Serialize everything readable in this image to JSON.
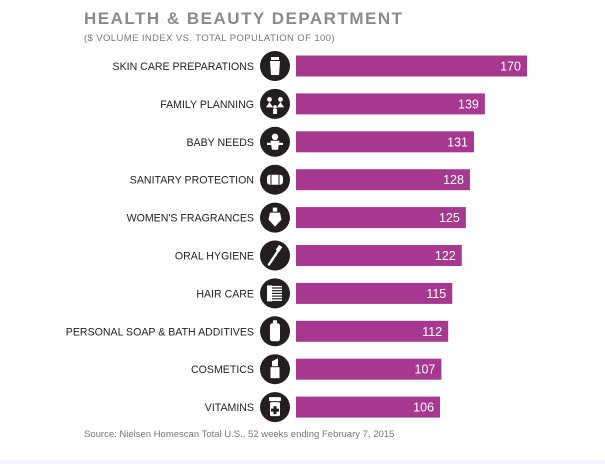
{
  "title": "HEALTH & BEAUTY DEPARTMENT",
  "subtitle": "($ VOLUME INDEX VS. TOTAL POPULATION OF 100)",
  "source": "Source: Nielsen Homescan Total U.S., 52 weeks ending February 7, 2015",
  "colors": {
    "bar": "#a6388f",
    "icon": "#231f20",
    "text": "#231f20",
    "value": "#ffffff"
  },
  "chart_data": {
    "type": "bar",
    "orientation": "horizontal",
    "categories": [
      "SKIN CARE PREPARATIONS",
      "FAMILY PLANNING",
      "BABY NEEDS",
      "SANITARY PROTECTION",
      "WOMEN'S FRAGRANCES",
      "ORAL HYGIENE",
      "HAIR CARE",
      "PERSONAL SOAP & BATH ADDITIVES",
      "COSMETICS",
      "VITAMINS"
    ],
    "values": [
      170,
      139,
      131,
      128,
      125,
      122,
      115,
      112,
      107,
      106
    ],
    "icons": [
      "lotion-bottle-icon",
      "family-icon",
      "baby-icon",
      "pad-icon",
      "perfume-bottle-icon",
      "toothbrush-icon",
      "comb-icon",
      "soap-bottle-icon",
      "lipstick-icon",
      "pill-bottle-icon"
    ],
    "xlim": [
      0,
      170
    ],
    "grid": false,
    "legend": false
  }
}
